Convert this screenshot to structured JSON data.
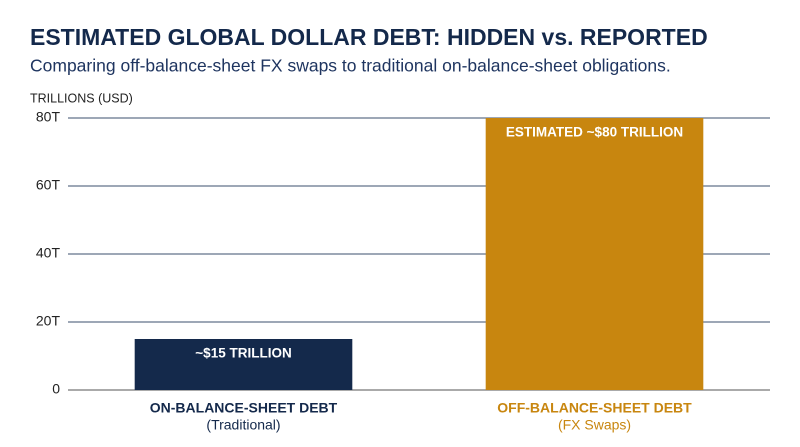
{
  "chart_data": {
    "type": "bar",
    "title": "ESTIMATED GLOBAL DOLLAR DEBT: HIDDEN vs. REPORTED",
    "subtitle": "Comparing off-balance-sheet FX swaps to traditional on-balance-sheet obligations.",
    "y_label": "TRILLIONS (USD)",
    "categories": [
      "ON-BALANCE-SHEET DEBT",
      "OFF-BALANCE-SHEET DEBT"
    ],
    "category_subtitles": [
      "(Traditional)",
      "(FX Swaps)"
    ],
    "values": [
      15,
      80
    ],
    "value_labels": [
      "~$15 TRILLION",
      "ESTIMATED ~$80 TRILLION"
    ],
    "colors": [
      "#14294b",
      "#c8860f"
    ],
    "ylim": [
      0,
      80
    ],
    "yticks": [
      0,
      {
        "value": 20,
        "label": "20T"
      },
      {
        "value": 40,
        "label": "40T"
      },
      {
        "value": 60,
        "label": "60T"
      },
      {
        "value": 80,
        "label": "80T"
      }
    ],
    "grid": true
  }
}
